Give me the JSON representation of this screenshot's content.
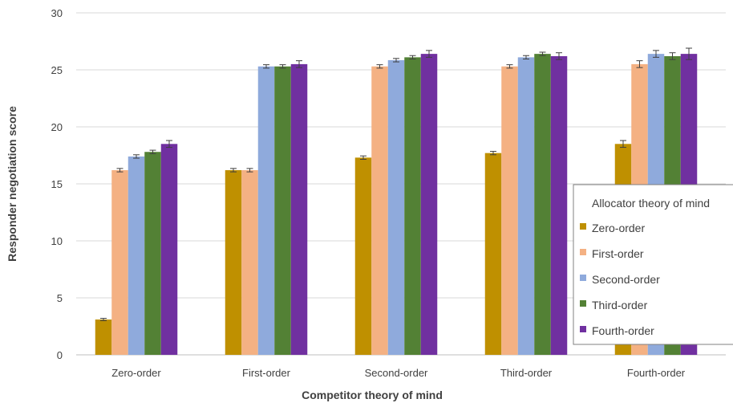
{
  "chart_data": {
    "type": "bar",
    "title": "",
    "xlabel": "Competitor theory of mind",
    "ylabel": "Responder negotiation score",
    "ylim": [
      0,
      30
    ],
    "yticks": [
      0,
      5,
      10,
      15,
      20,
      25,
      30
    ],
    "grid": "horizontal",
    "legend_placement": "right",
    "legend_title": "Allocator theory of mind",
    "categories": [
      "Zero-order",
      "First-order",
      "Second-order",
      "Third-order",
      "Fourth-order"
    ],
    "series": [
      {
        "name": "Zero-order",
        "color": "#bf9000",
        "values": [
          3.1,
          16.2,
          17.3,
          17.7,
          18.5
        ],
        "errors": [
          0.1,
          0.15,
          0.15,
          0.15,
          0.3
        ]
      },
      {
        "name": "First-order",
        "color": "#f4b183",
        "values": [
          16.2,
          16.2,
          25.3,
          25.3,
          25.5
        ],
        "errors": [
          0.15,
          0.15,
          0.15,
          0.15,
          0.3
        ]
      },
      {
        "name": "Second-order",
        "color": "#8faadc",
        "values": [
          17.4,
          25.3,
          25.85,
          26.1,
          26.4
        ],
        "errors": [
          0.15,
          0.15,
          0.15,
          0.15,
          0.3
        ]
      },
      {
        "name": "Third-order",
        "color": "#538135",
        "values": [
          17.8,
          25.3,
          26.1,
          26.4,
          26.2
        ],
        "errors": [
          0.15,
          0.15,
          0.15,
          0.15,
          0.3
        ]
      },
      {
        "name": "Fourth-order",
        "color": "#7030a0",
        "values": [
          18.5,
          25.5,
          26.4,
          26.2,
          26.4
        ],
        "errors": [
          0.3,
          0.3,
          0.3,
          0.3,
          0.5
        ]
      }
    ]
  }
}
